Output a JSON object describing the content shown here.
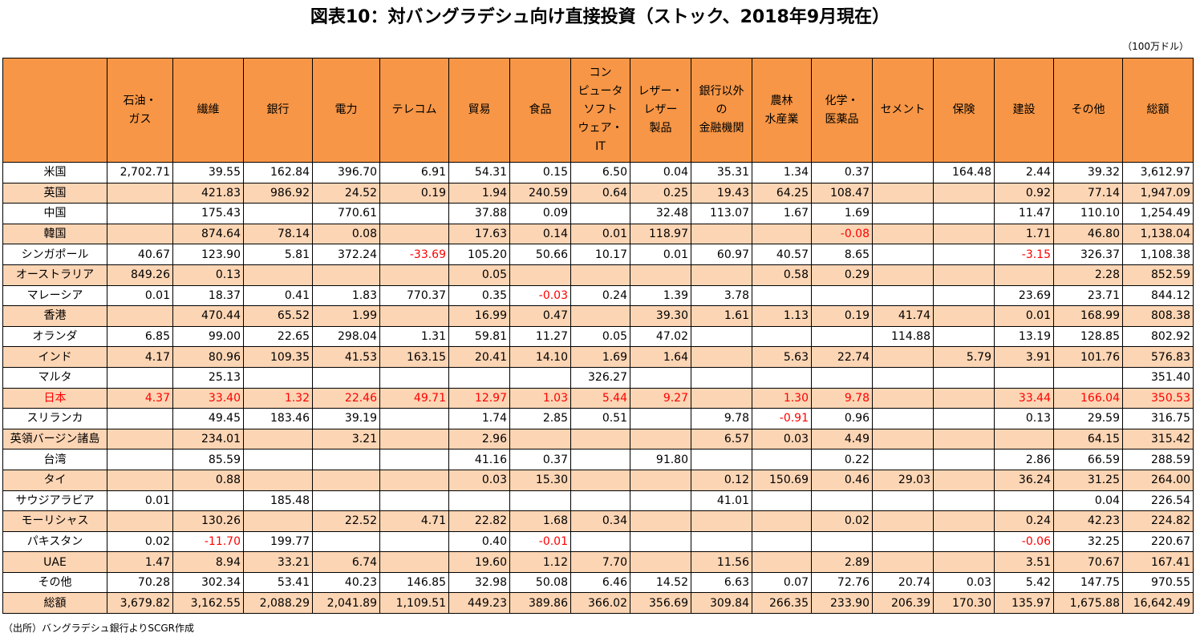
{
  "title": "図表10：対バングラデシュ向け直接投資（ストック、2018年9月現在）",
  "unit": "（100万ドル）",
  "source": "（出所）バングラデシュ銀行よりSCGR作成",
  "colors": {
    "header_bg": "#f79646",
    "alt_row_bg": "#fcd5b4",
    "negative_text": "#ff0000"
  },
  "table": {
    "headers": [
      "",
      "石油・\nガス",
      "繊維",
      "銀行",
      "電力",
      "テレコム",
      "貿易",
      "食品",
      "コン\nピュータ\nソフト\nウェア・\nIT",
      "レザー・\nレザー\n製品",
      "銀行以外\nの\n金融機関",
      "農林\n水産業",
      "化学・\n医薬品",
      "セメント",
      "保険",
      "建設",
      "その他",
      "総額"
    ],
    "rows": [
      [
        "米国",
        "2,702.71",
        "39.55",
        "162.84",
        "396.70",
        "6.91",
        "54.31",
        "0.15",
        "6.50",
        "0.04",
        "35.31",
        "1.34",
        "0.37",
        "",
        "164.48",
        "2.44",
        "39.32",
        "3,612.97"
      ],
      [
        "英国",
        "",
        "421.83",
        "986.92",
        "24.52",
        "0.19",
        "1.94",
        "240.59",
        "0.64",
        "0.25",
        "19.43",
        "64.25",
        "108.47",
        "",
        "",
        "0.92",
        "77.14",
        "1,947.09"
      ],
      [
        "中国",
        "",
        "175.43",
        "",
        "770.61",
        "",
        "37.88",
        "0.09",
        "",
        "32.48",
        "113.07",
        "1.67",
        "1.69",
        "",
        "",
        "11.47",
        "110.10",
        "1,254.49"
      ],
      [
        "韓国",
        "",
        "874.64",
        "78.14",
        "0.08",
        "",
        "17.63",
        "0.14",
        "0.01",
        "118.97",
        "",
        "",
        "-0.08",
        "",
        "",
        "1.71",
        "46.80",
        "1,138.04"
      ],
      [
        "シンガポール",
        "40.67",
        "123.90",
        "5.81",
        "372.24",
        "-33.69",
        "105.20",
        "50.66",
        "10.17",
        "0.01",
        "60.97",
        "40.57",
        "8.65",
        "",
        "",
        "-3.15",
        "326.37",
        "1,108.38"
      ],
      [
        "オーストラリア",
        "849.26",
        "0.13",
        "",
        "",
        "",
        "0.05",
        "",
        "",
        "",
        "",
        "0.58",
        "0.29",
        "",
        "",
        "",
        "2.28",
        "852.59"
      ],
      [
        "マレーシア",
        "0.01",
        "18.37",
        "0.41",
        "1.83",
        "770.37",
        "0.35",
        "-0.03",
        "0.24",
        "1.39",
        "3.78",
        "",
        "",
        "",
        "",
        "23.69",
        "23.71",
        "844.12"
      ],
      [
        "香港",
        "",
        "470.44",
        "65.52",
        "1.99",
        "",
        "16.99",
        "0.47",
        "",
        "39.30",
        "1.61",
        "1.13",
        "0.19",
        "41.74",
        "",
        "0.01",
        "168.99",
        "808.38"
      ],
      [
        "オランダ",
        "6.85",
        "99.00",
        "22.65",
        "298.04",
        "1.31",
        "59.81",
        "11.27",
        "0.05",
        "47.02",
        "",
        "",
        "",
        "114.88",
        "",
        "13.19",
        "128.85",
        "802.92"
      ],
      [
        "インド",
        "4.17",
        "80.96",
        "109.35",
        "41.53",
        "163.15",
        "20.41",
        "14.10",
        "1.69",
        "1.64",
        "",
        "5.63",
        "22.74",
        "",
        "5.79",
        "3.91",
        "101.76",
        "576.83"
      ],
      [
        "マルタ",
        "",
        "25.13",
        "",
        "",
        "",
        "",
        "",
        "326.27",
        "",
        "",
        "",
        "",
        "",
        "",
        "",
        "",
        "351.40"
      ],
      [
        "日本",
        "4.37",
        "33.40",
        "1.32",
        "22.46",
        "49.71",
        "12.97",
        "1.03",
        "5.44",
        "9.27",
        "",
        "1.30",
        "9.78",
        "",
        "",
        "33.44",
        "166.04",
        "350.53"
      ],
      [
        "スリランカ",
        "",
        "49.45",
        "183.46",
        "39.19",
        "",
        "1.74",
        "2.85",
        "0.51",
        "",
        "9.78",
        "-0.91",
        "0.96",
        "",
        "",
        "0.13",
        "29.59",
        "316.75"
      ],
      [
        "英領バージン諸島",
        "",
        "234.01",
        "",
        "3.21",
        "",
        "2.96",
        "",
        "",
        "",
        "6.57",
        "0.03",
        "4.49",
        "",
        "",
        "",
        "64.15",
        "315.42"
      ],
      [
        "台湾",
        "",
        "85.59",
        "",
        "",
        "",
        "41.16",
        "0.37",
        "",
        "91.80",
        "",
        "",
        "0.22",
        "",
        "",
        "2.86",
        "66.59",
        "288.59"
      ],
      [
        "タイ",
        "",
        "0.88",
        "",
        "",
        "",
        "0.03",
        "15.30",
        "",
        "",
        "0.12",
        "150.69",
        "0.46",
        "29.03",
        "",
        "36.24",
        "31.25",
        "264.00"
      ],
      [
        "サウジアラビア",
        "0.01",
        "",
        "185.48",
        "",
        "",
        "",
        "",
        "",
        "",
        "41.01",
        "",
        "",
        "",
        "",
        "",
        "0.04",
        "226.54"
      ],
      [
        "モーリシャス",
        "",
        "130.26",
        "",
        "22.52",
        "4.71",
        "22.82",
        "1.68",
        "0.34",
        "",
        "",
        "",
        "0.02",
        "",
        "",
        "0.24",
        "42.23",
        "224.82"
      ],
      [
        "パキスタン",
        "0.02",
        "-11.70",
        "199.77",
        "",
        "",
        "0.40",
        "-0.01",
        "",
        "",
        "",
        "",
        "",
        "",
        "",
        "-0.06",
        "32.25",
        "220.67"
      ],
      [
        "UAE",
        "1.47",
        "8.94",
        "33.21",
        "6.74",
        "",
        "19.60",
        "1.12",
        "7.70",
        "",
        "11.56",
        "",
        "2.89",
        "",
        "",
        "3.51",
        "70.67",
        "167.41"
      ],
      [
        "その他",
        "70.28",
        "302.34",
        "53.41",
        "40.23",
        "146.85",
        "32.98",
        "50.08",
        "6.46",
        "14.52",
        "6.63",
        "0.07",
        "72.76",
        "20.74",
        "0.03",
        "5.42",
        "147.75",
        "970.55"
      ],
      [
        "総額",
        "3,679.82",
        "3,162.55",
        "2,088.29",
        "2,041.89",
        "1,109.51",
        "449.23",
        "389.86",
        "366.02",
        "356.69",
        "309.84",
        "266.35",
        "233.90",
        "206.39",
        "170.30",
        "135.97",
        "1,675.88",
        "16,642.49"
      ]
    ],
    "highlight_row": "日本"
  }
}
